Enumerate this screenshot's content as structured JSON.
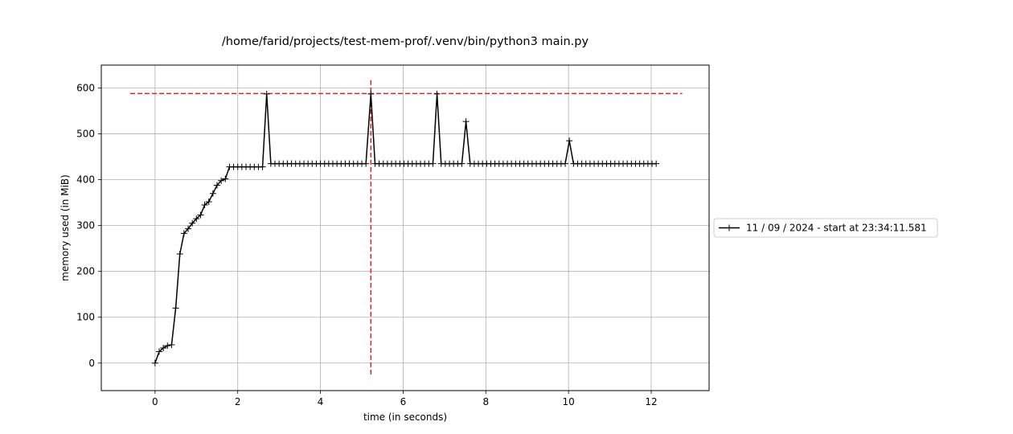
{
  "chart_data": {
    "type": "line",
    "title": "/home/farid/projects/test-mem-prof/.venv/bin/python3 main.py",
    "xlabel": "time (in seconds)",
    "ylabel": "memory used (in MiB)",
    "xlim": [
      -1.3,
      13.4
    ],
    "ylim": [
      -60,
      650
    ],
    "xticks": [
      0,
      2,
      4,
      6,
      8,
      10,
      12
    ],
    "yticks": [
      0,
      100,
      200,
      300,
      400,
      500,
      600
    ],
    "grid": true,
    "legend_position": "right",
    "series": [
      {
        "name": "11 / 09 / 2024 - start at 23:34:11.581",
        "color": "#000000",
        "marker": "+",
        "x": [
          0.0,
          0.1,
          0.2,
          0.3,
          0.4,
          0.5,
          0.6,
          0.7,
          0.8,
          0.9,
          1.0,
          1.1,
          1.2,
          1.3,
          1.4,
          1.5,
          1.6,
          1.7,
          1.8,
          1.9,
          2.0,
          2.1,
          2.2,
          2.3,
          2.4,
          2.5,
          2.6,
          2.7,
          2.8,
          2.9,
          3.0,
          3.1,
          3.2,
          3.3,
          3.4,
          3.5,
          3.6,
          3.7,
          3.8,
          3.9,
          4.0,
          4.1,
          4.2,
          4.3,
          4.4,
          4.5,
          4.6,
          4.7,
          4.8,
          4.9,
          5.0,
          5.1,
          5.22,
          5.32,
          5.42,
          5.52,
          5.62,
          5.72,
          5.82,
          5.92,
          6.02,
          6.12,
          6.22,
          6.32,
          6.42,
          6.52,
          6.62,
          6.72,
          6.82,
          6.92,
          7.02,
          7.12,
          7.22,
          7.32,
          7.42,
          7.52,
          7.62,
          7.72,
          7.82,
          7.92,
          8.02,
          8.12,
          8.22,
          8.32,
          8.42,
          8.52,
          8.62,
          8.72,
          8.82,
          8.92,
          9.02,
          9.12,
          9.22,
          9.32,
          9.42,
          9.52,
          9.62,
          9.72,
          9.82,
          9.92,
          10.02,
          10.12,
          10.22,
          10.32,
          10.42,
          10.52,
          10.62,
          10.72,
          10.82,
          10.92,
          11.02,
          11.12,
          11.22,
          11.32,
          11.42,
          11.52,
          11.62,
          11.72,
          11.82,
          11.92,
          12.02,
          12.12
        ],
        "y": [
          0,
          25,
          33,
          38,
          40,
          120,
          238,
          283,
          293,
          305,
          315,
          323,
          345,
          352,
          370,
          388,
          398,
          402,
          428,
          428,
          428,
          428,
          428,
          428,
          428,
          428,
          428,
          587,
          435,
          435,
          435,
          435,
          435,
          435,
          435,
          435,
          435,
          435,
          435,
          435,
          435,
          435,
          435,
          435,
          435,
          435,
          435,
          435,
          435,
          435,
          435,
          435,
          587,
          435,
          435,
          435,
          435,
          435,
          435,
          435,
          435,
          435,
          435,
          435,
          435,
          435,
          435,
          435,
          587,
          435,
          435,
          435,
          435,
          435,
          435,
          527,
          435,
          435,
          435,
          435,
          435,
          435,
          435,
          435,
          435,
          435,
          435,
          435,
          435,
          435,
          435,
          435,
          435,
          435,
          435,
          435,
          435,
          435,
          435,
          435,
          485,
          435,
          435,
          435,
          435,
          435,
          435,
          435,
          435,
          435,
          435,
          435,
          435,
          435,
          435,
          435,
          435,
          435,
          435,
          435,
          435,
          435
        ]
      }
    ],
    "annotations": [
      {
        "type": "hline",
        "y": 588,
        "x_from": -0.6,
        "x_to": 12.75,
        "color": "#d62728",
        "style": "dashed"
      },
      {
        "type": "vline",
        "x": 5.22,
        "y_from": -30,
        "y_to": 617,
        "color": "#d62728",
        "style": "dashed"
      }
    ]
  }
}
